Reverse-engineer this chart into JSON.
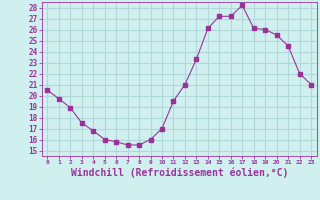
{
  "x": [
    0,
    1,
    2,
    3,
    4,
    5,
    6,
    7,
    8,
    9,
    10,
    11,
    12,
    13,
    14,
    15,
    16,
    17,
    18,
    19,
    20,
    21,
    22,
    23
  ],
  "y": [
    20.5,
    19.7,
    18.9,
    17.5,
    16.8,
    16.0,
    15.8,
    15.5,
    15.5,
    16.0,
    17.0,
    19.5,
    21.0,
    23.3,
    26.1,
    27.2,
    27.2,
    28.2,
    26.1,
    26.0,
    25.5,
    24.5,
    22.0,
    21.0
  ],
  "line_color": "#993399",
  "marker": "s",
  "marker_size": 2.5,
  "bg_color": "#d0f0f0",
  "grid_color": "#b0d8d8",
  "axis_color": "#993399",
  "tick_color": "#993399",
  "xlabel": "Windchill (Refroidissement éolien,°C)",
  "xlabel_fontsize": 7,
  "ylabel_ticks": [
    15,
    16,
    17,
    18,
    19,
    20,
    21,
    22,
    23,
    24,
    25,
    26,
    27,
    28
  ],
  "ylim": [
    14.5,
    28.5
  ],
  "xlim": [
    -0.5,
    23.5
  ],
  "xtick_fontsize": 4.5,
  "ytick_fontsize": 5.5
}
